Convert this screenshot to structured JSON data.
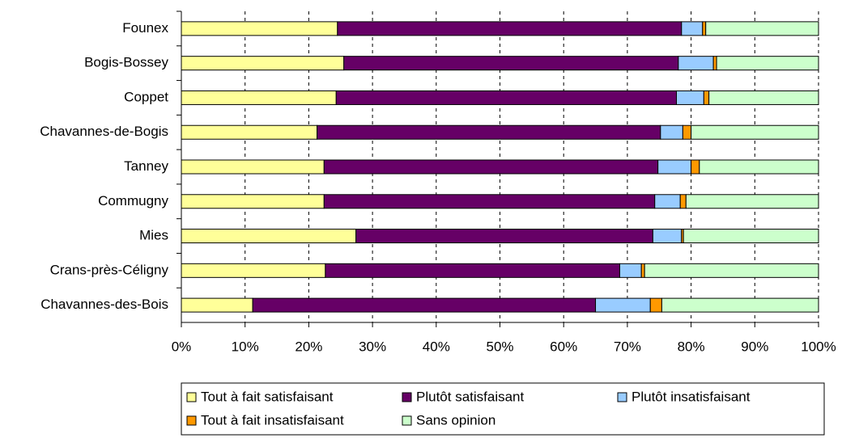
{
  "chart_data": {
    "type": "stacked_bar_horizontal",
    "categories": [
      "Founex",
      "Bogis-Bossey",
      "Coppet",
      "Chavannes-de-Bogis",
      "Tanney",
      "Commugny",
      "Mies",
      "Crans-près-Céligny",
      "Chavannes-des-Bois"
    ],
    "series": [
      {
        "name": "Tout à fait satisfaisant",
        "color": "#ffff99",
        "values": [
          24.5,
          25.5,
          24.3,
          21.3,
          22.4,
          22.4,
          27.4,
          22.6,
          11.2
        ]
      },
      {
        "name": "Plutôt satisfaisant",
        "color": "#660066",
        "values": [
          54,
          52.5,
          53.4,
          53.9,
          52.4,
          51.9,
          46.6,
          46.2,
          53.8
        ]
      },
      {
        "name": "Plutôt insatisfaisant",
        "color": "#99ccff",
        "values": [
          3.3,
          5.5,
          4.3,
          3.5,
          5.2,
          4,
          4.5,
          3.4,
          8.6
        ]
      },
      {
        "name": "Tout à fait insatisfaisant",
        "color": "#ff9900",
        "values": [
          0.5,
          0.5,
          0.8,
          1.3,
          1.3,
          0.9,
          0.3,
          0.5,
          1.8
        ]
      },
      {
        "name": "Sans opinion",
        "color": "#ccffcc",
        "values": [
          17.7,
          16,
          17.2,
          20,
          18.7,
          20.8,
          21.2,
          27.3,
          24.6
        ]
      }
    ],
    "xlim": [
      0,
      100
    ],
    "xticks": [
      {
        "value": 0,
        "label": "0%"
      },
      {
        "value": 10,
        "label": "10%"
      },
      {
        "value": 20,
        "label": "20%"
      },
      {
        "value": 30,
        "label": "30%"
      },
      {
        "value": 40,
        "label": "40%"
      },
      {
        "value": 50,
        "label": "50%"
      },
      {
        "value": 60,
        "label": "60%"
      },
      {
        "value": 70,
        "label": "70%"
      },
      {
        "value": 80,
        "label": "80%"
      },
      {
        "value": 90,
        "label": "90%"
      },
      {
        "value": 100,
        "label": "100%"
      }
    ],
    "grid": true
  }
}
